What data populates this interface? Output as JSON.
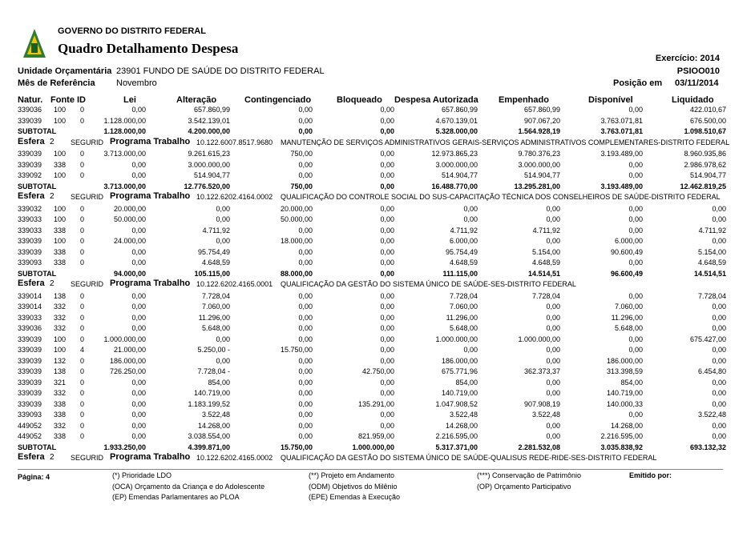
{
  "header": {
    "org": "GOVERNO DO DISTRITO FEDERAL",
    "title": "Quadro Detalhamento Despesa",
    "exercise": "Exercício: 2014",
    "report_code": "PSIOO010",
    "unit_label": "Unidade Orçamentária",
    "unit": "23901  FUNDO DE SAÚDE DO DISTRITO FEDERAL",
    "month_label": "Mês de Referência",
    "month": "Novembro",
    "position_label": "Posição em",
    "position": "03/11/2014"
  },
  "columns": [
    "Natur.",
    "Fonte",
    "ID",
    "Lei",
    "Alteração",
    "Contingenciado",
    "Bloqueado",
    "Despesa Autorizada",
    "Empenhado",
    "Disponível",
    "Liquidado"
  ],
  "sections": [
    {
      "rows": [
        [
          "339036",
          "100",
          "0",
          "0,00",
          "657.860,99",
          "0,00",
          "0,00",
          "657.860,99",
          "657.860,99",
          "0,00",
          "422.010,67"
        ],
        [
          "339039",
          "100",
          "0",
          "1.128.000,00",
          "3.542.139,01",
          "0,00",
          "0,00",
          "4.670.139,01",
          "907.067,20",
          "3.763.071,81",
          "676.500,00"
        ]
      ],
      "subtotal": {
        "label": "SUBTOTAL",
        "values": [
          "1.128.000,00",
          "4.200.000,00",
          "0,00",
          "0,00",
          "5.328.000,00",
          "1.564.928,19",
          "3.763.071,81",
          "1.098.510,67"
        ]
      },
      "program": {
        "esfera_label": "Esfera",
        "esfera": "2",
        "segment": "SEGURID",
        "label": "Programa Trabalho",
        "code": "10.122.6007.8517.9680",
        "description": "MANUTENÇÃO DE SERVIÇOS ADMINISTRATIVOS GERAIS-SERVIÇOS ADMINISTRATIVOS COMPLEMENTARES-DISTRITO FEDERAL"
      }
    },
    {
      "rows": [
        [
          "339039",
          "100",
          "0",
          "3.713.000,00",
          "9.261.615,23",
          "750,00",
          "0,00",
          "12.973.865,23",
          "9.780.376,23",
          "3.193.489,00",
          "8.960.935,86"
        ],
        [
          "339039",
          "338",
          "0",
          "0,00",
          "3.000.000,00",
          "0,00",
          "0,00",
          "3.000.000,00",
          "3.000.000,00",
          "0,00",
          "2.986.978,62"
        ],
        [
          "339092",
          "100",
          "0",
          "0,00",
          "514.904,77",
          "0,00",
          "0,00",
          "514.904,77",
          "514.904,77",
          "0,00",
          "514.904,77"
        ]
      ],
      "subtotal": {
        "label": "SUBTOTAL",
        "values": [
          "3.713.000,00",
          "12.776.520,00",
          "750,00",
          "0,00",
          "16.488.770,00",
          "13.295.281,00",
          "3.193.489,00",
          "12.462.819,25"
        ]
      },
      "program": {
        "esfera_label": "Esfera",
        "esfera": "2",
        "segment": "SEGURID",
        "label": "Programa Trabalho",
        "code": "10.122.6202.4164.0002",
        "description": "QUALIFICAÇÃO DO CONTROLE SOCIAL DO SUS-CAPACITAÇÃO TÉCNICA DOS CONSELHEIROS DE SAÚDE-DISTRITO FEDERAL"
      }
    },
    {
      "rows": [
        [
          "339032",
          "100",
          "0",
          "20.000,00",
          "0,00",
          "20.000,00",
          "0,00",
          "0,00",
          "0,00",
          "0,00",
          "0,00"
        ],
        [
          "339033",
          "100",
          "0",
          "50.000,00",
          "0,00",
          "50.000,00",
          "0,00",
          "0,00",
          "0,00",
          "0,00",
          "0,00"
        ],
        [
          "339033",
          "338",
          "0",
          "0,00",
          "4.711,92",
          "0,00",
          "0,00",
          "4.711,92",
          "4.711,92",
          "0,00",
          "4.711,92"
        ],
        [
          "339039",
          "100",
          "0",
          "24.000,00",
          "0,00",
          "18.000,00",
          "0,00",
          "6.000,00",
          "0,00",
          "6.000,00",
          "0,00"
        ],
        [
          "339039",
          "338",
          "0",
          "0,00",
          "95.754,49",
          "0,00",
          "0,00",
          "95.754,49",
          "5.154,00",
          "90.600,49",
          "5.154,00"
        ],
        [
          "339093",
          "338",
          "0",
          "0,00",
          "4.648,59",
          "0,00",
          "0,00",
          "4.648,59",
          "4.648,59",
          "0,00",
          "4.648,59"
        ]
      ],
      "subtotal": {
        "label": "SUBTOTAL",
        "values": [
          "94.000,00",
          "105.115,00",
          "88.000,00",
          "0,00",
          "111.115,00",
          "14.514,51",
          "96.600,49",
          "14.514,51"
        ]
      },
      "program": {
        "esfera_label": "Esfera",
        "esfera": "2",
        "segment": "SEGURID",
        "label": "Programa Trabalho",
        "code": "10.122.6202.4165.0001",
        "description": "QUALIFICAÇÃO DA GESTÃO DO SISTEMA ÚNICO DE SAÚDE-SES-DISTRITO FEDERAL"
      }
    },
    {
      "rows": [
        [
          "339014",
          "138",
          "0",
          "0,00",
          "7.728,04",
          "0,00",
          "0,00",
          "7.728,04",
          "7.728,04",
          "0,00",
          "7.728,04"
        ],
        [
          "339014",
          "332",
          "0",
          "0,00",
          "7.060,00",
          "0,00",
          "0,00",
          "7.060,00",
          "0,00",
          "7.060,00",
          "0,00"
        ],
        [
          "339033",
          "332",
          "0",
          "0,00",
          "11.296,00",
          "0,00",
          "0,00",
          "11.296,00",
          "0,00",
          "11.296,00",
          "0,00"
        ],
        [
          "339036",
          "332",
          "0",
          "0,00",
          "5.648,00",
          "0,00",
          "0,00",
          "5.648,00",
          "0,00",
          "5.648,00",
          "0,00"
        ],
        [
          "339039",
          "100",
          "0",
          "1.000.000,00",
          "0,00",
          "0,00",
          "0,00",
          "1.000.000,00",
          "1.000.000,00",
          "0,00",
          "675.427,00"
        ],
        [
          "339039",
          "100",
          "4",
          "21.000,00",
          "5.250,00 -",
          "15.750,00",
          "0,00",
          "0,00",
          "0,00",
          "0,00",
          "0,00"
        ],
        [
          "339039",
          "132",
          "0",
          "186.000,00",
          "0,00",
          "0,00",
          "0,00",
          "186.000,00",
          "0,00",
          "186.000,00",
          "0,00"
        ],
        [
          "339039",
          "138",
          "0",
          "726.250,00",
          "7.728,04 -",
          "0,00",
          "42.750,00",
          "675.771,96",
          "362.373,37",
          "313.398,59",
          "6.454,80"
        ],
        [
          "339039",
          "321",
          "0",
          "0,00",
          "854,00",
          "0,00",
          "0,00",
          "854,00",
          "0,00",
          "854,00",
          "0,00"
        ],
        [
          "339039",
          "332",
          "0",
          "0,00",
          "140.719,00",
          "0,00",
          "0,00",
          "140.719,00",
          "0,00",
          "140.719,00",
          "0,00"
        ],
        [
          "339039",
          "338",
          "0",
          "0,00",
          "1.183.199,52",
          "0,00",
          "135.291,00",
          "1.047.908,52",
          "907.908,19",
          "140.000,33",
          "0,00"
        ],
        [
          "339093",
          "338",
          "0",
          "0,00",
          "3.522,48",
          "0,00",
          "0,00",
          "3.522,48",
          "3.522,48",
          "0,00",
          "3.522,48"
        ],
        [
          "449052",
          "332",
          "0",
          "0,00",
          "14.268,00",
          "0,00",
          "0,00",
          "14.268,00",
          "0,00",
          "14.268,00",
          "0,00"
        ],
        [
          "449052",
          "338",
          "0",
          "0,00",
          "3.038.554,00",
          "0,00",
          "821.959,00",
          "2.216.595,00",
          "0,00",
          "2.216.595,00",
          "0,00"
        ]
      ],
      "subtotal": {
        "label": "SUBTOTAL",
        "values": [
          "1.933.250,00",
          "4.399.871,00",
          "15.750,00",
          "1.000.000,00",
          "5.317.371,00",
          "2.281.532,08",
          "3.035.838,92",
          "693.132,32"
        ]
      },
      "program": {
        "esfera_label": "Esfera",
        "esfera": "2",
        "segment": "SEGURID",
        "label": "Programa Trabalho",
        "code": "10.122.6202.4165.0002",
        "description": "QUALIFICAÇÃO DA GESTÃO DO SISTEMA ÚNICO DE SAÚDE-QUALISUS REDE-RIDE-SES-DISTRITO FEDERAL"
      }
    }
  ],
  "footer": {
    "page": "Página: 4",
    "issued": "Emitido por:",
    "legend": [
      [
        "(*) Prioridade LDO",
        "(**) Projeto em Andamento",
        "(***) Conservação de Patrimônio"
      ],
      [
        "(OCA) Orçamento da Criança e do Adolescente",
        "(ODM) Objetivos do Milênio",
        "(OP) Orçamento Participativo"
      ],
      [
        "(EP) Emendas Parlamentares ao PLOA",
        "(EPE) Emendas à Execução"
      ]
    ]
  }
}
